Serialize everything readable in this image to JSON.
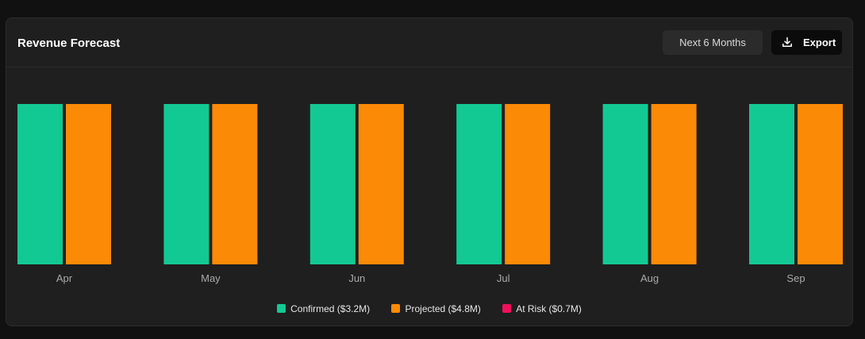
{
  "header": {
    "title": "Revenue Forecast",
    "range_label": "Next 6 Months",
    "export_label": "Export"
  },
  "icons": {
    "export": "download-icon"
  },
  "colors": {
    "confirmed": "#13c993",
    "projected": "#fb8a06",
    "at_risk": "#f0105c"
  },
  "chart_data": {
    "type": "bar",
    "categories": [
      "Apr",
      "May",
      "Jun",
      "Jul",
      "Aug",
      "Sep"
    ],
    "series": [
      {
        "name": "Confirmed ($3.2M)",
        "values": [
          1,
          1,
          1,
          1,
          1,
          1
        ]
      },
      {
        "name": "Projected ($4.8M)",
        "values": [
          1,
          1,
          1,
          1,
          1,
          1
        ]
      },
      {
        "name": "At Risk ($0.7M)",
        "values": [
          0,
          0,
          0,
          0,
          0,
          0
        ]
      }
    ],
    "ylim": [
      0,
      1
    ],
    "grid": false,
    "legend_position": "bottom-center"
  }
}
